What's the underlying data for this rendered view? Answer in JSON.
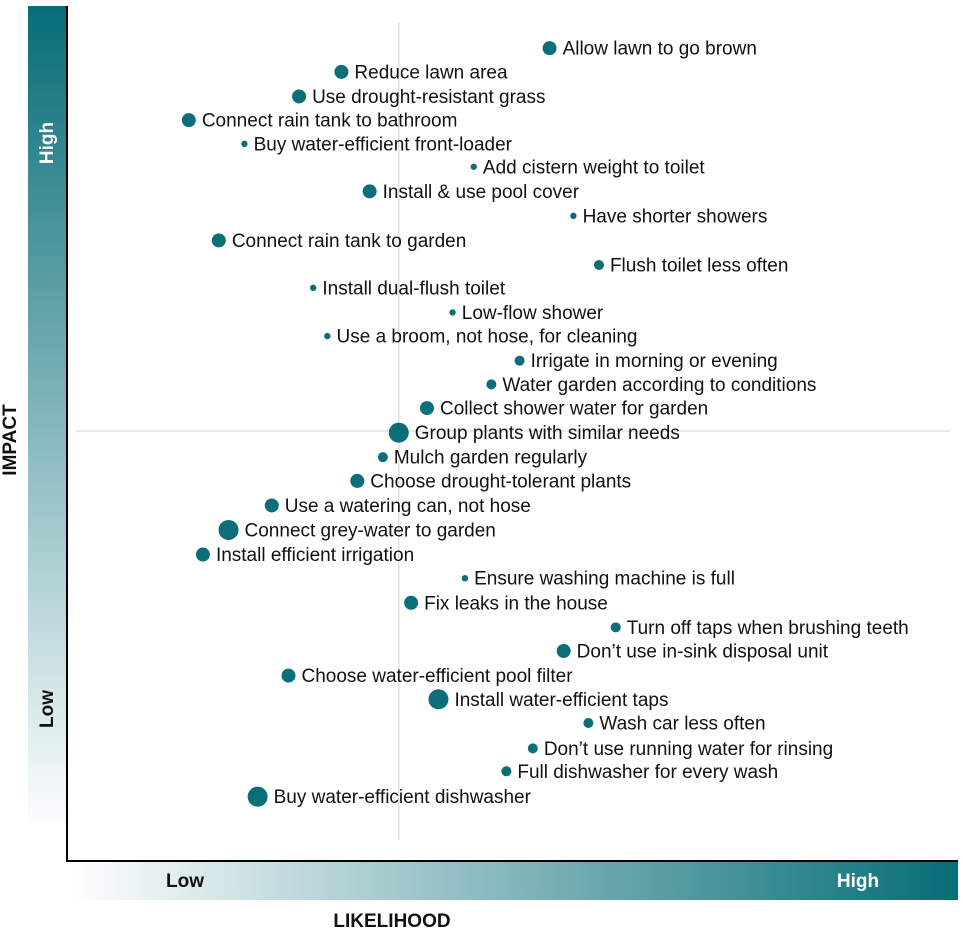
{
  "chart_data": {
    "type": "scatter",
    "title": "",
    "xlabel": "LIKELIHOOD",
    "ylabel": "IMPACT",
    "x_ticks": {
      "low": "Low",
      "high": "High"
    },
    "y_ticks": {
      "low": "Low",
      "high": "High"
    },
    "xlim": [
      0,
      100
    ],
    "ylim": [
      0,
      100
    ],
    "grid": false,
    "quadrant_lines": {
      "x": 37.5,
      "y": 50
    },
    "colors": {
      "marker": "#0b6e78",
      "gradient_dark": "#066d77",
      "gradient_light": "#ffffff",
      "axis": "#000000",
      "quadrant": "#e2e2e2"
    },
    "points": [
      {
        "label": "Allow lawn to go brown",
        "x": 54.6,
        "y": 96.8,
        "size": 2
      },
      {
        "label": "Reduce lawn area",
        "x": 31.0,
        "y": 93.9,
        "size": 2
      },
      {
        "label": "Use drought-resistant grass",
        "x": 26.2,
        "y": 90.9,
        "size": 2
      },
      {
        "label": "Connect rain tank to bathroom",
        "x": 13.7,
        "y": 88.0,
        "size": 2
      },
      {
        "label": "Buy water-efficient front-loader",
        "x": 20.0,
        "y": 85.1,
        "size": 1
      },
      {
        "label": "Add cistern weight to toilet",
        "x": 46.0,
        "y": 82.3,
        "size": 1
      },
      {
        "label": "Install & use pool cover",
        "x": 34.2,
        "y": 79.3,
        "size": 2
      },
      {
        "label": "Have shorter showers",
        "x": 57.3,
        "y": 76.3,
        "size": 1
      },
      {
        "label": "Connect rain tank to garden",
        "x": 17.1,
        "y": 73.3,
        "size": 2
      },
      {
        "label": "Flush toilet less often",
        "x": 60.2,
        "y": 70.3,
        "size": 1.5
      },
      {
        "label": "Install dual-flush toilet",
        "x": 27.8,
        "y": 67.5,
        "size": 1
      },
      {
        "label": "Low-flow shower",
        "x": 43.6,
        "y": 64.5,
        "size": 1
      },
      {
        "label": "Use a broom, not hose, for cleaning",
        "x": 29.4,
        "y": 61.6,
        "size": 1
      },
      {
        "label": "Irrigate in morning or evening",
        "x": 51.2,
        "y": 58.6,
        "size": 1.5
      },
      {
        "label": "Water garden according to conditions",
        "x": 48.0,
        "y": 55.7,
        "size": 1.5
      },
      {
        "label": "Collect shower water for garden",
        "x": 40.7,
        "y": 52.8,
        "size": 2
      },
      {
        "label": "Group plants with similar needs",
        "x": 37.5,
        "y": 49.8,
        "size": 3
      },
      {
        "label": "Mulch garden regularly",
        "x": 35.7,
        "y": 46.8,
        "size": 1.5
      },
      {
        "label": "Choose drought-tolerant plants",
        "x": 32.8,
        "y": 43.9,
        "size": 2
      },
      {
        "label": "Use a watering can, not hose",
        "x": 23.1,
        "y": 40.9,
        "size": 2
      },
      {
        "label": "Connect grey-water to garden",
        "x": 18.2,
        "y": 37.9,
        "size": 3
      },
      {
        "label": "Install efficient irrigation",
        "x": 15.3,
        "y": 34.9,
        "size": 2
      },
      {
        "label": "Ensure washing machine is full",
        "x": 45.0,
        "y": 32.0,
        "size": 1
      },
      {
        "label": "Fix leaks in the house",
        "x": 38.9,
        "y": 29.0,
        "size": 2
      },
      {
        "label": "Turn off taps when brushing teeth",
        "x": 62.1,
        "y": 26.0,
        "size": 1.5
      },
      {
        "label": "Don’t use in-sink disposal unit",
        "x": 56.2,
        "y": 23.1,
        "size": 2
      },
      {
        "label": "Choose water-efficient pool filter",
        "x": 25.0,
        "y": 20.1,
        "size": 2
      },
      {
        "label": "Install water-efficient taps",
        "x": 42.0,
        "y": 17.2,
        "size": 3
      },
      {
        "label": "Wash car less often",
        "x": 59.0,
        "y": 14.3,
        "size": 1.5
      },
      {
        "label": "Don’t use running water for rinsing",
        "x": 52.7,
        "y": 11.2,
        "size": 1.5
      },
      {
        "label": "Full dishwasher for every wash",
        "x": 49.7,
        "y": 8.4,
        "size": 1.5
      },
      {
        "label": "Buy water-efficient dishwasher",
        "x": 21.5,
        "y": 5.3,
        "size": 3
      }
    ]
  }
}
